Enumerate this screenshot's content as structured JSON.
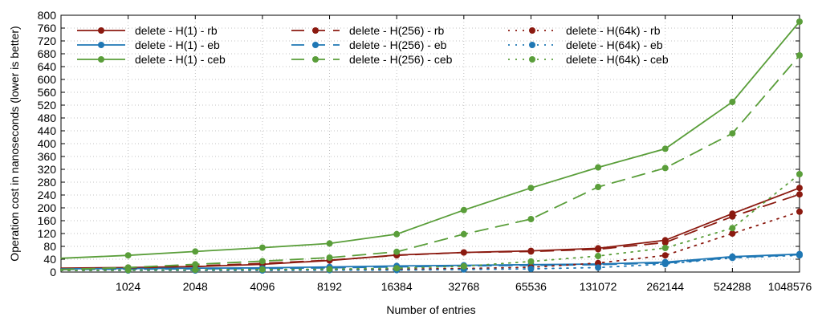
{
  "chart_data": {
    "type": "line",
    "title": "",
    "xlabel": "Number of entries",
    "ylabel": "Operation cost in nanoseconds (lower is better)",
    "x_scale": "log2",
    "xlim": [
      512,
      1048576
    ],
    "ylim": [
      0,
      800
    ],
    "x_ticks": [
      1024,
      2048,
      4096,
      8192,
      16384,
      32768,
      65536,
      131072,
      262144,
      524288,
      1048576
    ],
    "y_ticks": [
      0,
      40,
      80,
      120,
      160,
      200,
      240,
      280,
      320,
      360,
      400,
      440,
      480,
      520,
      560,
      600,
      640,
      680,
      720,
      760,
      800
    ],
    "grid": true,
    "legend_position": "top-left",
    "x": [
      512,
      1024,
      2048,
      4096,
      8192,
      16384,
      32768,
      65536,
      131072,
      262144,
      524288,
      1048576
    ],
    "series": [
      {
        "name": "delete - H(1) - rb",
        "color": "#8b1a10",
        "style": "solid",
        "values": [
          12,
          14,
          17,
          24,
          36,
          53,
          61,
          66,
          74,
          99,
          182,
          262
        ]
      },
      {
        "name": "delete - H(1) - eb",
        "color": "#1f77b4",
        "style": "solid",
        "values": [
          10,
          11,
          12,
          13,
          16,
          19,
          21,
          23,
          25,
          31,
          48,
          56
        ]
      },
      {
        "name": "delete - H(1) - ceb",
        "color": "#5a9e3a",
        "style": "solid",
        "values": [
          43,
          52,
          64,
          76,
          89,
          118,
          193,
          262,
          326,
          384,
          530,
          780
        ]
      },
      {
        "name": "delete - H(256) - rb",
        "color": "#8b1a10",
        "style": "dashed",
        "values": [
          8,
          12,
          19,
          27,
          37,
          52,
          61,
          64,
          71,
          92,
          173,
          242
        ]
      },
      {
        "name": "delete - H(256) - eb",
        "color": "#1f77b4",
        "style": "dashed",
        "values": [
          8,
          9,
          10,
          11,
          13,
          16,
          19,
          21,
          23,
          28,
          45,
          54
        ]
      },
      {
        "name": "delete - H(256) - ceb",
        "color": "#5a9e3a",
        "style": "dashed",
        "values": [
          8,
          14,
          24,
          34,
          45,
          63,
          118,
          165,
          265,
          324,
          432,
          675
        ]
      },
      {
        "name": "delete - H(64k) - rb",
        "color": "#8b1a10",
        "style": "dotted",
        "values": [
          5,
          6,
          6,
          7,
          8,
          9,
          11,
          15,
          28,
          52,
          120,
          188
        ]
      },
      {
        "name": "delete - H(64k) - eb",
        "color": "#1f77b4",
        "style": "dotted",
        "values": [
          5,
          5,
          5,
          5,
          6,
          6,
          8,
          10,
          14,
          25,
          44,
          52
        ]
      },
      {
        "name": "delete - H(64k) - ceb",
        "color": "#5a9e3a",
        "style": "dotted",
        "values": [
          5,
          6,
          7,
          8,
          9,
          12,
          18,
          33,
          50,
          75,
          137,
          305
        ]
      }
    ]
  }
}
